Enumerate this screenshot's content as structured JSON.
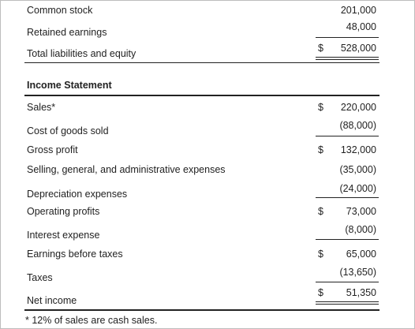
{
  "balance_sheet_tail": {
    "common_stock": {
      "label": "Common stock",
      "amount": "201,000"
    },
    "retained_earnings": {
      "label": "Retained earnings",
      "amount": "48,000"
    },
    "total_liabilities_equity": {
      "label": "Total liabilities and equity",
      "currency": "$",
      "amount": "528,000"
    }
  },
  "income_statement": {
    "title": "Income Statement",
    "rows": [
      {
        "label": "Sales*",
        "currency": "$",
        "amount": "220,000"
      },
      {
        "label": "Cost of goods sold",
        "currency": "",
        "amount": "(88,000)"
      },
      {
        "label": "Gross profit",
        "currency": "$",
        "amount": "132,000"
      },
      {
        "label": "Selling, general, and administrative expenses",
        "currency": "",
        "amount": "(35,000)"
      },
      {
        "label": "Depreciation expenses",
        "currency": "",
        "amount": "(24,000)"
      },
      {
        "label": "Operating profits",
        "currency": "$",
        "amount": "73,000"
      },
      {
        "label": "Interest expense",
        "currency": "",
        "amount": "(8,000)"
      },
      {
        "label": "Earnings before taxes",
        "currency": "$",
        "amount": "65,000"
      },
      {
        "label": "Taxes",
        "currency": "",
        "amount": "(13,650)"
      },
      {
        "label": "Net income",
        "currency": "$",
        "amount": "51,350"
      }
    ]
  },
  "footnote": "* 12% of sales are cash sales."
}
